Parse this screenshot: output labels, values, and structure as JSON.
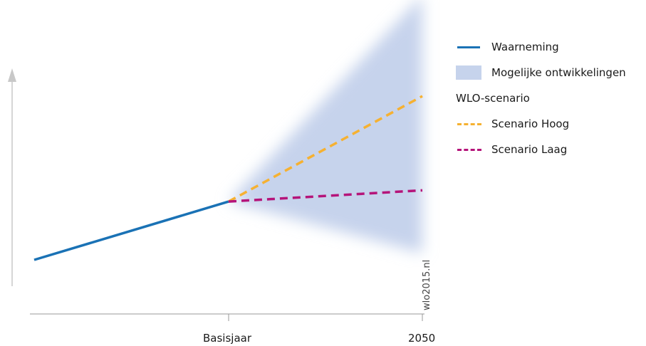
{
  "chart_data": {
    "type": "line",
    "x_ticks": [
      "Basisjaar",
      "2050"
    ],
    "ylim": [
      0,
      100
    ],
    "y_axis_arrow": true,
    "grid": false,
    "legend_position": "right",
    "series": [
      {
        "name": "Waarneming",
        "style": "solid",
        "color": "#1a72b5",
        "points": [
          [
            0.0,
            27
          ],
          [
            1.0,
            53
          ]
        ]
      },
      {
        "name": "Scenario Hoog",
        "style": "dashed",
        "color": "#f6b131",
        "points": [
          [
            1.0,
            53
          ],
          [
            2.0,
            100
          ]
        ]
      },
      {
        "name": "Scenario Laag",
        "style": "dashed",
        "color": "#b5147a",
        "points": [
          [
            1.0,
            53
          ],
          [
            2.0,
            58
          ]
        ]
      }
    ],
    "band": {
      "name": "Mogelijke ontwikkelingen",
      "color": "#c6d3ec",
      "points": [
        [
          1.0,
          53,
          53
        ],
        [
          2.0,
          30,
          145
        ]
      ]
    },
    "legend": {
      "waarneming": "Waarneming",
      "band": "Mogelijke ontwikkelingen",
      "group_title": "WLO-scenario",
      "hoog": "Scenario Hoog",
      "laag": "Scenario Laag"
    },
    "source": "wlo2015.nl"
  }
}
